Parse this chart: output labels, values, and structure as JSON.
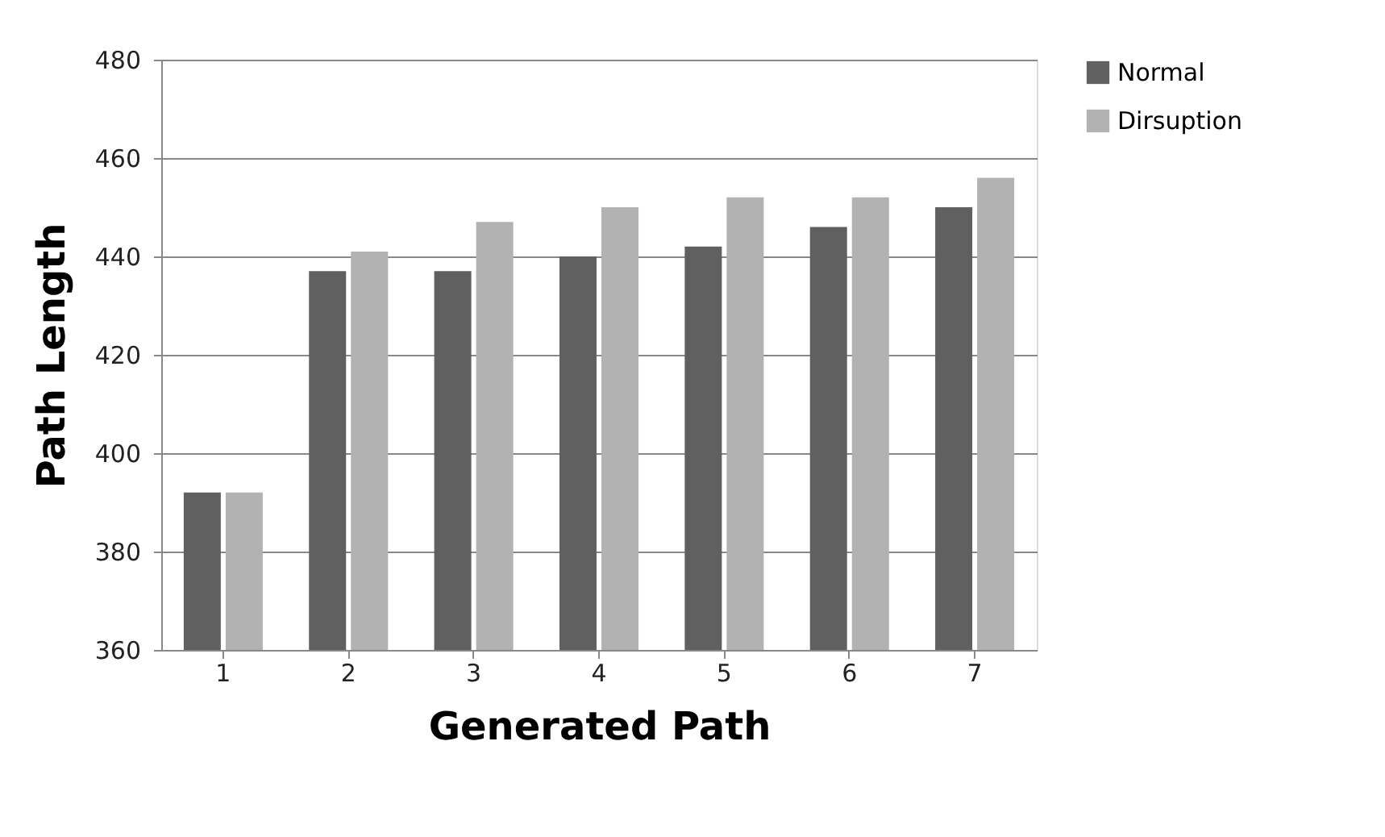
{
  "chart_data": {
    "type": "bar",
    "xlabel": "Generated Path",
    "ylabel": "Path Length",
    "categories": [
      "1",
      "2",
      "3",
      "4",
      "5",
      "6",
      "7"
    ],
    "series": [
      {
        "name": "Normal",
        "color": "#606060",
        "values": [
          392,
          437,
          437,
          440,
          442,
          446,
          450
        ]
      },
      {
        "name": "Dirsuption",
        "color": "#b2b2b2",
        "values": [
          392,
          441,
          447,
          450,
          452,
          452,
          456
        ]
      }
    ],
    "ylim": [
      360,
      480
    ],
    "yticks": [
      360,
      380,
      400,
      420,
      440,
      460,
      480
    ],
    "grid": "y",
    "legend": "right"
  }
}
